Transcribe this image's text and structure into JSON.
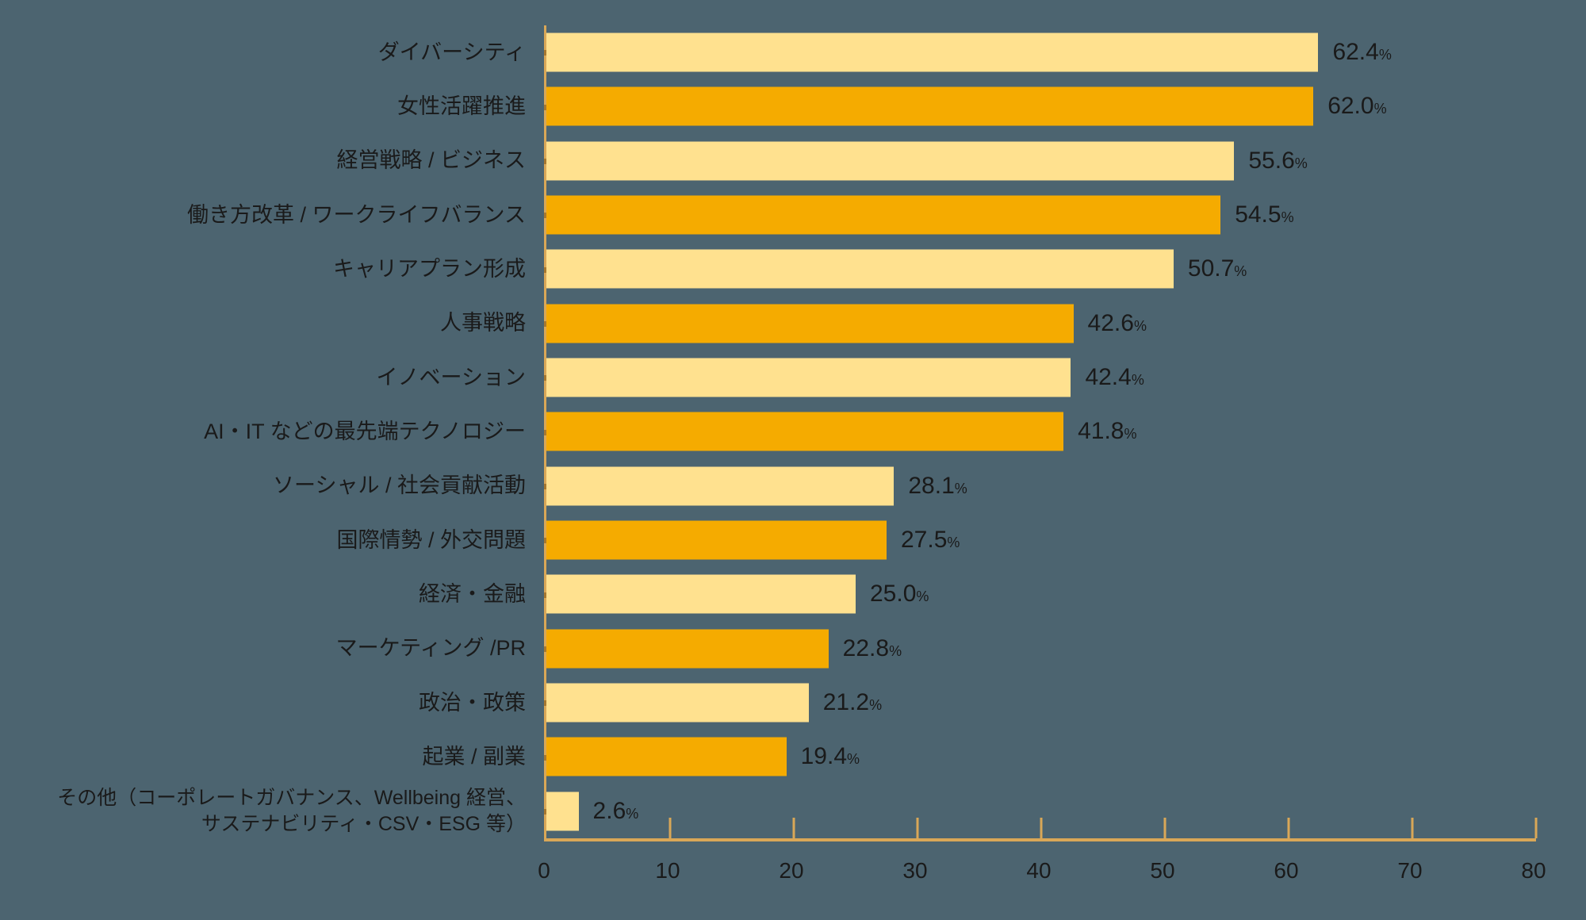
{
  "chart_data": {
    "type": "bar",
    "orientation": "horizontal",
    "title": "",
    "xlabel": "",
    "ylabel": "",
    "xlim": [
      0,
      80
    ],
    "x_ticks": [
      0,
      10,
      20,
      30,
      40,
      50,
      60,
      70,
      80
    ],
    "grid": false,
    "legend": false,
    "value_suffix": "%",
    "categories": [
      "ダイバーシティ",
      "女性活躍推進",
      "経営戦略 / ビジネス",
      "働き方改革 / ワークライフバランス",
      "キャリアプラン形成",
      "人事戦略",
      "イノベーション",
      "AI・IT などの最先端テクノロジー",
      "ソーシャル / 社会貢献活動",
      "国際情勢 / 外交問題",
      "経済・金融",
      "マーケティング /PR",
      "政治・政策",
      "起業 / 副業",
      "その他（コーポレートガバナンス、Wellbeing 経営、\nサステナビリティ・CSV・ESG 等）"
    ],
    "values": [
      62.4,
      62.0,
      55.6,
      54.5,
      50.7,
      42.6,
      42.4,
      41.8,
      28.1,
      27.5,
      25.0,
      22.8,
      21.2,
      19.4,
      2.6
    ],
    "value_labels": [
      "62.4",
      "62.0",
      "55.6",
      "54.5",
      "50.7",
      "42.6",
      "42.4",
      "41.8",
      "28.1",
      "27.5",
      "25.0",
      "22.8",
      "21.2",
      "19.4",
      "2.6"
    ],
    "colors": {
      "background": "#4C6470",
      "bar_light": "#FFE18F",
      "bar_orange": "#F5AB00",
      "axis": "#D9A757",
      "axis_notch": "#A8782F",
      "text": "#1A1A1A"
    }
  }
}
